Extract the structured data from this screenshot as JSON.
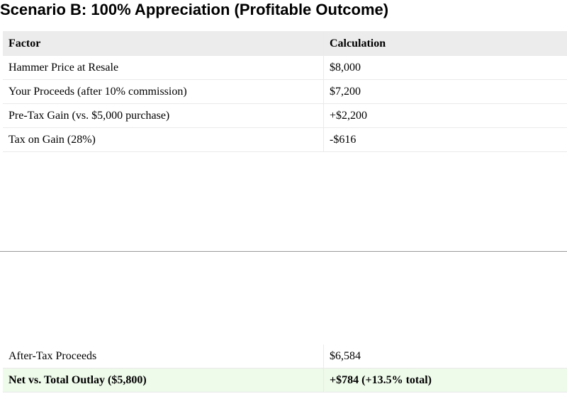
{
  "title": "Scenario B: 100% Appreciation (Profitable Outcome)",
  "table": {
    "header": [
      "Factor",
      "Calculation"
    ],
    "rows": [
      [
        "Hammer Price at Resale",
        "$8,000"
      ],
      [
        "Your Proceeds (after 10% commission)",
        "$7,200"
      ],
      [
        "Pre-Tax Gain (vs. $5,000 purchase)",
        "+$2,200"
      ],
      [
        "Tax on Gain (28%)",
        "-$616"
      ]
    ]
  },
  "table_continued": {
    "rows": [
      [
        "After-Tax Proceeds",
        "$6,584"
      ],
      [
        "Net vs. Total Outlay ($5,800)",
        "+$784 (+13.5% total)"
      ]
    ]
  }
}
